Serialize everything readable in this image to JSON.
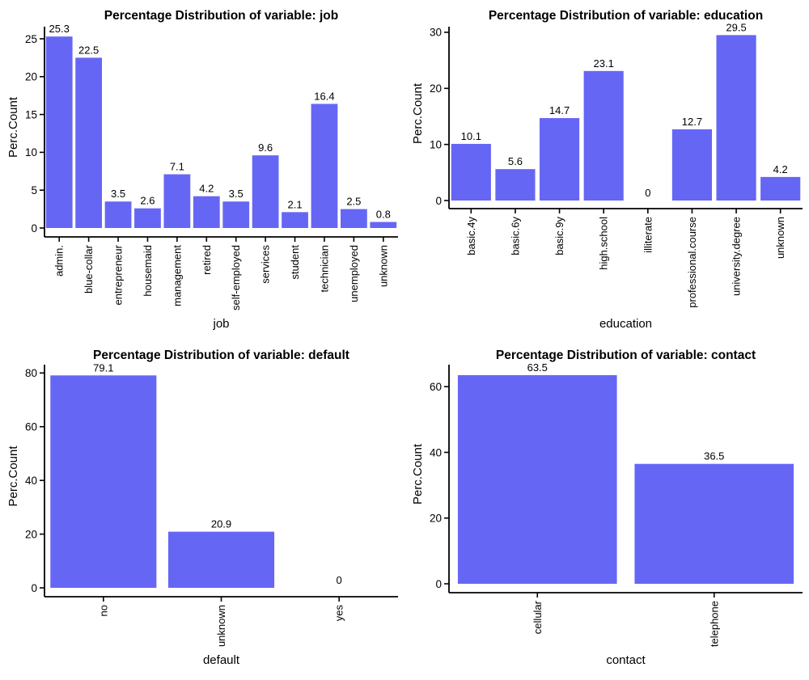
{
  "figure": {
    "background": "#ffffff",
    "text_color": "#000000",
    "axis_color": "#000000"
  },
  "chart_data": [
    {
      "type": "bar",
      "title": "Percentage Distribution of variable: job",
      "xlabel": "job",
      "ylabel": "Perc.Count",
      "categories": [
        "admin.",
        "blue-collar",
        "entrepreneur",
        "housemaid",
        "management",
        "retired",
        "self-employed",
        "services",
        "student",
        "technician",
        "unemployed",
        "unknown"
      ],
      "values": [
        25.3,
        22.5,
        3.5,
        2.6,
        7.1,
        4.2,
        3.5,
        9.6,
        2.1,
        16.4,
        2.5,
        0.8
      ],
      "bar_labels": [
        "25.3",
        "22.5",
        "3.5",
        "2.6",
        "7.1",
        "4.2",
        "3.5",
        "9.6",
        "2.1",
        "16.4",
        "2.5",
        "0.8"
      ],
      "yticks": [
        0,
        5,
        10,
        15,
        20,
        25
      ],
      "ylim": [
        0,
        26.6
      ],
      "bar_color": "#6666F5",
      "grid": false,
      "legend": false,
      "x_tick_rotation": 90
    },
    {
      "type": "bar",
      "title": "Percentage Distribution of variable: education",
      "xlabel": "education",
      "ylabel": "Perc.Count",
      "categories": [
        "basic.4y",
        "basic.6y",
        "basic.9y",
        "high.school",
        "illiterate",
        "professional.course",
        "university.degree",
        "unknown"
      ],
      "values": [
        10.1,
        5.6,
        14.7,
        23.1,
        0,
        12.7,
        29.5,
        4.2
      ],
      "bar_labels": [
        "10.1",
        "5.6",
        "14.7",
        "23.1",
        "0",
        "12.7",
        "29.5",
        "4.2"
      ],
      "yticks": [
        0,
        10,
        20,
        30
      ],
      "ylim": [
        0,
        31
      ],
      "bar_color": "#6666F5",
      "grid": false,
      "legend": false,
      "x_tick_rotation": 90
    },
    {
      "type": "bar",
      "title": "Percentage Distribution of variable: default",
      "xlabel": "default",
      "ylabel": "Perc.Count",
      "categories": [
        "no",
        "unknown",
        "yes"
      ],
      "values": [
        79.1,
        20.9,
        0
      ],
      "bar_labels": [
        "79.1",
        "20.9",
        "0"
      ],
      "yticks": [
        0,
        20,
        40,
        60,
        80
      ],
      "ylim": [
        0,
        83.1
      ],
      "bar_color": "#6666F5",
      "grid": false,
      "legend": false,
      "x_tick_rotation": 90
    },
    {
      "type": "bar",
      "title": "Percentage Distribution of variable: contact",
      "xlabel": "contact",
      "ylabel": "Perc.Count",
      "categories": [
        "cellular",
        "telephone"
      ],
      "values": [
        63.5,
        36.5
      ],
      "bar_labels": [
        "63.5",
        "36.5"
      ],
      "yticks": [
        0,
        20,
        40,
        60
      ],
      "ylim": [
        0,
        66.7
      ],
      "bar_color": "#6666F5",
      "grid": false,
      "legend": false,
      "x_tick_rotation": 90
    }
  ]
}
